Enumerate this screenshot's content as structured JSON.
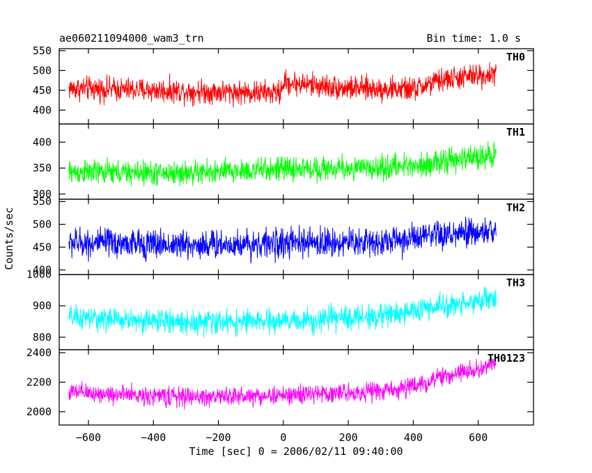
{
  "header": {
    "left_title": "ae060211094000_wam3_trn",
    "right_title": "Bin time: 1.0 s"
  },
  "chart_data": {
    "type": "line",
    "title": "ae060211094000_wam3_trn",
    "subtitle": "Bin time: 1.0 s",
    "xlabel": "Time [sec] 0 = 2006/02/11 09:40:00",
    "ylabel": "Counts/sec",
    "xlim": [
      -690,
      770
    ],
    "xticks": [
      -600,
      -400,
      -200,
      0,
      200,
      400,
      600
    ],
    "x_range": [
      -660,
      655
    ],
    "panels": [
      {
        "name": "TH0",
        "color": "#ff0000",
        "ylim": [
          365,
          555
        ],
        "yticks": [
          400,
          450,
          500,
          550
        ],
        "trend": [
          {
            "x": -660,
            "y": 455
          },
          {
            "x": -300,
            "y": 448
          },
          {
            "x": -10,
            "y": 443
          },
          {
            "x": 0,
            "y": 470
          },
          {
            "x": 200,
            "y": 455
          },
          {
            "x": 400,
            "y": 452
          },
          {
            "x": 500,
            "y": 478
          },
          {
            "x": 655,
            "y": 492
          }
        ],
        "noise": 26
      },
      {
        "name": "TH1",
        "color": "#00ff00",
        "ylim": [
          290,
          435
        ],
        "yticks": [
          300,
          350,
          400
        ],
        "trend": [
          {
            "x": -660,
            "y": 342
          },
          {
            "x": -300,
            "y": 340
          },
          {
            "x": 0,
            "y": 348
          },
          {
            "x": 300,
            "y": 350
          },
          {
            "x": 500,
            "y": 362
          },
          {
            "x": 655,
            "y": 378
          }
        ],
        "noise": 20
      },
      {
        "name": "TH2",
        "color": "#0000ff",
        "ylim": [
          390,
          555
        ],
        "yticks": [
          400,
          450,
          500,
          550
        ],
        "trend": [
          {
            "x": -660,
            "y": 460
          },
          {
            "x": -300,
            "y": 455
          },
          {
            "x": 0,
            "y": 458
          },
          {
            "x": 300,
            "y": 462
          },
          {
            "x": 500,
            "y": 475
          },
          {
            "x": 655,
            "y": 485
          }
        ],
        "noise": 28
      },
      {
        "name": "TH3",
        "color": "#00ffff",
        "ylim": [
          760,
          1000
        ],
        "yticks": [
          800,
          900,
          1000
        ],
        "trend": [
          {
            "x": -660,
            "y": 862
          },
          {
            "x": -300,
            "y": 848
          },
          {
            "x": 0,
            "y": 850
          },
          {
            "x": 300,
            "y": 868
          },
          {
            "x": 500,
            "y": 900
          },
          {
            "x": 655,
            "y": 925
          }
        ],
        "noise": 32
      },
      {
        "name": "TH0123",
        "color": "#ff00ff",
        "ylim": [
          1910,
          2420
        ],
        "yticks": [
          2000,
          2200,
          2400
        ],
        "trend": [
          {
            "x": -660,
            "y": 2130
          },
          {
            "x": -300,
            "y": 2100
          },
          {
            "x": 0,
            "y": 2110
          },
          {
            "x": 300,
            "y": 2140
          },
          {
            "x": 400,
            "y": 2170
          },
          {
            "x": 500,
            "y": 2240
          },
          {
            "x": 655,
            "y": 2320
          }
        ],
        "noise": 55
      }
    ]
  }
}
